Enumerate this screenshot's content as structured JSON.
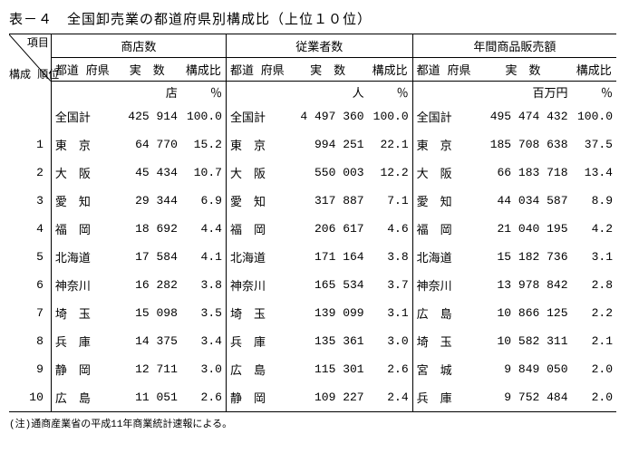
{
  "title": "表－４　全国卸売業の都道府県別構成比（上位１０位）",
  "corner_top": "項目",
  "corner_bottom": "構成\n順位",
  "groups": [
    "商店数",
    "従業者数",
    "年間商品販売額"
  ],
  "subheaders": {
    "pref": "都道\n府県",
    "value": "実　数",
    "ratio": "構成比"
  },
  "units": [
    {
      "value": "店",
      "ratio": "％"
    },
    {
      "value": "人",
      "ratio": "％"
    },
    {
      "value": "百万円",
      "ratio": "％"
    }
  ],
  "total_label": "全国計",
  "totals": [
    {
      "value": "425 914",
      "ratio": "100.0"
    },
    {
      "value": "4 497 360",
      "ratio": "100.0"
    },
    {
      "value": "495 474 432",
      "ratio": "100.0"
    }
  ],
  "rows": [
    {
      "rank": "1",
      "c": [
        {
          "pref": "東　京",
          "value": "64 770",
          "ratio": "15.2"
        },
        {
          "pref": "東　京",
          "value": "994 251",
          "ratio": "22.1"
        },
        {
          "pref": "東　京",
          "value": "185 708 638",
          "ratio": "37.5"
        }
      ]
    },
    {
      "rank": "2",
      "c": [
        {
          "pref": "大　阪",
          "value": "45 434",
          "ratio": "10.7"
        },
        {
          "pref": "大　阪",
          "value": "550 003",
          "ratio": "12.2"
        },
        {
          "pref": "大　阪",
          "value": "66 183 718",
          "ratio": "13.4"
        }
      ]
    },
    {
      "rank": "3",
      "c": [
        {
          "pref": "愛　知",
          "value": "29 344",
          "ratio": "6.9"
        },
        {
          "pref": "愛　知",
          "value": "317 887",
          "ratio": "7.1"
        },
        {
          "pref": "愛　知",
          "value": "44 034 587",
          "ratio": "8.9"
        }
      ]
    },
    {
      "rank": "4",
      "c": [
        {
          "pref": "福　岡",
          "value": "18 692",
          "ratio": "4.4"
        },
        {
          "pref": "福　岡",
          "value": "206 617",
          "ratio": "4.6"
        },
        {
          "pref": "福　岡",
          "value": "21 040 195",
          "ratio": "4.2"
        }
      ]
    },
    {
      "rank": "5",
      "c": [
        {
          "pref": "北海道",
          "value": "17 584",
          "ratio": "4.1"
        },
        {
          "pref": "北海道",
          "value": "171 164",
          "ratio": "3.8"
        },
        {
          "pref": "北海道",
          "value": "15 182 736",
          "ratio": "3.1"
        }
      ]
    },
    {
      "rank": "6",
      "c": [
        {
          "pref": "神奈川",
          "value": "16 282",
          "ratio": "3.8"
        },
        {
          "pref": "神奈川",
          "value": "165 534",
          "ratio": "3.7"
        },
        {
          "pref": "神奈川",
          "value": "13 978 842",
          "ratio": "2.8"
        }
      ]
    },
    {
      "rank": "7",
      "c": [
        {
          "pref": "埼　玉",
          "value": "15 098",
          "ratio": "3.5"
        },
        {
          "pref": "埼　玉",
          "value": "139 099",
          "ratio": "3.1"
        },
        {
          "pref": "広　島",
          "value": "10 866 125",
          "ratio": "2.2"
        }
      ]
    },
    {
      "rank": "8",
      "c": [
        {
          "pref": "兵　庫",
          "value": "14 375",
          "ratio": "3.4"
        },
        {
          "pref": "兵　庫",
          "value": "135 361",
          "ratio": "3.0"
        },
        {
          "pref": "埼　玉",
          "value": "10 582 311",
          "ratio": "2.1"
        }
      ]
    },
    {
      "rank": "9",
      "c": [
        {
          "pref": "静　岡",
          "value": "12 711",
          "ratio": "3.0"
        },
        {
          "pref": "広　島",
          "value": "115 301",
          "ratio": "2.6"
        },
        {
          "pref": "宮　城",
          "value": "9 849 050",
          "ratio": "2.0"
        }
      ]
    },
    {
      "rank": "10",
      "c": [
        {
          "pref": "広　島",
          "value": "11 051",
          "ratio": "2.6"
        },
        {
          "pref": "静　岡",
          "value": "109 227",
          "ratio": "2.4"
        },
        {
          "pref": "兵　庫",
          "value": "9 752 484",
          "ratio": "2.0"
        }
      ]
    }
  ],
  "note": "(注)通商産業省の平成11年商業統計速報による。"
}
